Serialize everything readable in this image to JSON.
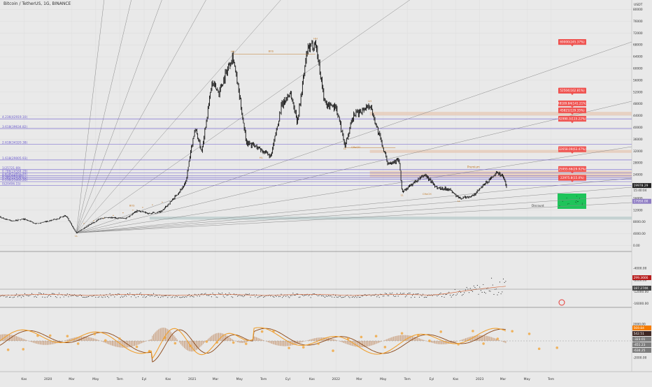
{
  "title": "Bitcoin / TetherUS, 1G, BINANCE",
  "currency": "USDT",
  "colors": {
    "background": "#e9e9e9",
    "candle": "#111111",
    "fib_line": "#6a5acd",
    "fib_label": "#6a5acd",
    "gann_line": "#8a8a8a",
    "target_label_bg": "#ef5350",
    "current_price_bg": "#222222",
    "support_zone": "#b7c9c9",
    "premium_zone": "#e6c8b4",
    "demand_box": "#1ec45a",
    "indicator_avg": "#d05a2a",
    "macd_fast": "#f0a030",
    "macd_slow": "#8b4513",
    "histogram": "#c9a080",
    "note_text": "#c07a2a"
  },
  "chart_data": [
    {
      "type": "candlestick",
      "x_range": [
        "2019-09-01",
        "2024-03-01"
      ],
      "ylim": [
        -40000,
        76000
      ],
      "y_ticks": [
        "80000",
        "76000",
        "72000",
        "68000",
        "64000",
        "60000",
        "56000",
        "52000",
        "48000",
        "44000",
        "40000",
        "36000",
        "32000",
        "28000",
        "24000",
        "16000",
        "12000",
        "8000.00",
        "4000.00",
        "0.00",
        "-4000.00",
        "-8000.00",
        "-12000.00",
        "-16000.00",
        "-20000.00"
      ],
      "x_ticks": [
        {
          "label": "Kas",
          "x": "2019-11-01"
        },
        {
          "label": "2020",
          "x": "2020-01-01"
        },
        {
          "label": "Mar",
          "x": "2020-03-01"
        },
        {
          "label": "May",
          "x": "2020-05-01"
        },
        {
          "label": "Tem",
          "x": "2020-07-01"
        },
        {
          "label": "Eyl",
          "x": "2020-09-01"
        },
        {
          "label": "Kas",
          "x": "2020-11-01"
        },
        {
          "label": "2021",
          "x": "2021-01-01"
        },
        {
          "label": "Mar",
          "x": "2021-03-01"
        },
        {
          "label": "May",
          "x": "2021-05-01"
        },
        {
          "label": "Tem",
          "x": "2021-07-01"
        },
        {
          "label": "Eyl",
          "x": "2021-09-01"
        },
        {
          "label": "Kas",
          "x": "2021-11-01"
        },
        {
          "label": "2022",
          "x": "2022-01-01"
        },
        {
          "label": "Mar",
          "x": "2022-03-01"
        },
        {
          "label": "May",
          "x": "2022-05-01"
        },
        {
          "label": "Tem",
          "x": "2022-07-01"
        },
        {
          "label": "Eyl",
          "x": "2022-09-01"
        },
        {
          "label": "Kas",
          "x": "2022-11-01"
        },
        {
          "label": "2023",
          "x": "2023-01-01"
        },
        {
          "label": "Mar",
          "x": "2023-03-01"
        },
        {
          "label": "May",
          "x": "2023-05-01"
        },
        {
          "label": "Tem",
          "x": "2023-07-01"
        }
      ],
      "price_path": [
        [
          "2019-09-01",
          9600
        ],
        [
          "2019-10-01",
          8300
        ],
        [
          "2019-11-01",
          9000
        ],
        [
          "2019-12-01",
          7300
        ],
        [
          "2020-01-15",
          8700
        ],
        [
          "2020-02-15",
          10100
        ],
        [
          "2020-03-13",
          4300
        ],
        [
          "2020-04-15",
          7000
        ],
        [
          "2020-05-15",
          9300
        ],
        [
          "2020-06-15",
          9400
        ],
        [
          "2020-07-15",
          9200
        ],
        [
          "2020-08-15",
          11800
        ],
        [
          "2020-09-15",
          10800
        ],
        [
          "2020-10-15",
          11500
        ],
        [
          "2020-11-15",
          16000
        ],
        [
          "2020-12-15",
          21000
        ],
        [
          "2021-01-08",
          40000
        ],
        [
          "2021-01-25",
          32000
        ],
        [
          "2021-02-20",
          55000
        ],
        [
          "2021-03-10",
          52000
        ],
        [
          "2021-04-14",
          64800
        ],
        [
          "2021-05-19",
          35000
        ],
        [
          "2021-06-20",
          33000
        ],
        [
          "2021-07-20",
          30000
        ],
        [
          "2021-08-15",
          47000
        ],
        [
          "2021-09-07",
          52000
        ],
        [
          "2021-09-25",
          42000
        ],
        [
          "2021-10-20",
          66000
        ],
        [
          "2021-11-10",
          69000
        ],
        [
          "2021-12-04",
          48000
        ],
        [
          "2022-01-01",
          47000
        ],
        [
          "2022-01-24",
          34000
        ],
        [
          "2022-02-15",
          44000
        ],
        [
          "2022-03-28",
          47800
        ],
        [
          "2022-04-15",
          40000
        ],
        [
          "2022-05-12",
          28000
        ],
        [
          "2022-06-10",
          29000
        ],
        [
          "2022-06-18",
          18000
        ],
        [
          "2022-07-15",
          21000
        ],
        [
          "2022-08-15",
          24000
        ],
        [
          "2022-09-15",
          19500
        ],
        [
          "2022-10-15",
          19200
        ],
        [
          "2022-11-09",
          16000
        ],
        [
          "2022-12-15",
          16800
        ],
        [
          "2023-01-15",
          21000
        ],
        [
          "2023-02-16",
          24800
        ],
        [
          "2023-03-01",
          23500
        ],
        [
          "2023-03-10",
          19978
        ]
      ],
      "current_price": "19978.29",
      "countdown": "15:40:04",
      "price_box_2": "17950.00",
      "fib_levels": [
        {
          "label": "4.236(42919.10)",
          "value": 42919
        },
        {
          "label": "3.618(39634.82)",
          "value": 39634
        },
        {
          "label": "2.618(34320.38)",
          "value": 34320
        },
        {
          "label": "1.618(29005.93)",
          "value": 29005
        },
        {
          "label": "1(25721.69)",
          "value": 25721
        },
        {
          "label": "0.786(24584.29)",
          "value": 24584
        },
        {
          "label": "0.618(23691.48)",
          "value": 23691
        },
        {
          "label": "0.5(23064.05)",
          "value": 23064
        },
        {
          "label": "0.382(22436.62)",
          "value": 22436
        },
        {
          "label": "0.236(21660.26)",
          "value": 21660
        },
        {
          "label": "0(20406.15)",
          "value": 20406
        }
      ],
      "targets": [
        {
          "label": "69000(245.37%)",
          "value": 69000
        },
        {
          "label": "52504(162.81%)",
          "value": 52504
        },
        {
          "label": "48189.84(141.21%)",
          "value": 48189
        },
        {
          "label": "45821(129.35%)",
          "value": 45821
        },
        {
          "label": "42990.3(115.22%)",
          "value": 42990
        },
        {
          "label": "32658.09(63.47%)",
          "value": 32658
        },
        {
          "label": "25955.66(29.92%)",
          "value": 25955
        },
        {
          "label": "22975.8(15.0%)",
          "value": 22975
        }
      ],
      "zones": [
        {
          "name": "premium",
          "from": 44100,
          "to": 45300
        },
        {
          "name": "premium",
          "from": 31400,
          "to": 32400
        },
        {
          "name": "premium",
          "from": 23200,
          "to": 25300
        },
        {
          "name": "support",
          "from": 8800,
          "to": 9800
        }
      ],
      "zone_labels": {
        "premium": "Premium",
        "discount": "Discount"
      },
      "annotations": [
        {
          "text": "HH",
          "x": "2021-04-14",
          "y": 65500
        },
        {
          "text": "BOS",
          "x": "2021-07-20",
          "y": 65600
        },
        {
          "text": "HH",
          "x": "2021-11-10",
          "y": 69800
        },
        {
          "text": "HL",
          "x": "2021-06-25",
          "y": 29500
        },
        {
          "text": "LH",
          "x": "2022-03-28",
          "y": 48600
        },
        {
          "text": "LL",
          "x": "2022-01-24",
          "y": 32500
        },
        {
          "text": "CHoCH",
          "x": "2022-02-20",
          "y": 33000
        },
        {
          "text": "LL",
          "x": "2022-06-18",
          "y": 16800
        },
        {
          "text": "LL",
          "x": "2022-11-09",
          "y": 14800
        },
        {
          "text": "LL",
          "x": "2020-03-13",
          "y": 3000
        },
        {
          "text": "BOS",
          "x": "2020-08-01",
          "y": 13200
        },
        {
          "text": "CHoCH",
          "x": "2022-08-20",
          "y": 17200
        }
      ]
    },
    {
      "type": "scatter",
      "name": "indicator_1",
      "value_1": "299.3666",
      "value_2": "187.274K"
    },
    {
      "type": "histogram",
      "name": "macd",
      "ylim": [
        -4000,
        4000
      ],
      "y_ticks": [
        "6000.00",
        "4000.00",
        "2000.00",
        "0.00",
        "-2000.00",
        "-4000.00"
      ],
      "values": [
        "569.84",
        "542.51",
        "-323.01",
        "-451.23",
        "-634.25"
      ]
    }
  ]
}
